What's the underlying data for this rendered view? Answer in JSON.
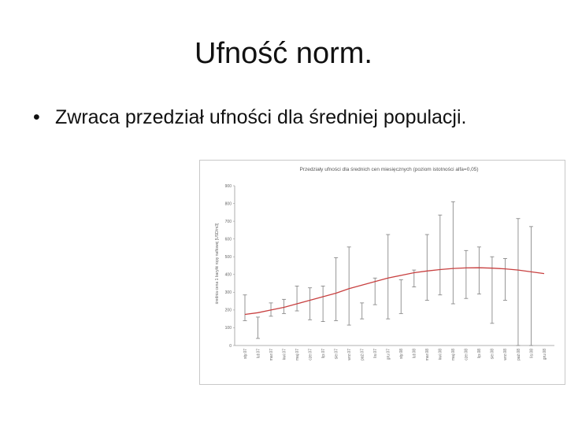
{
  "slide": {
    "title": "Ufność norm.",
    "bullet_marker": "•",
    "bullet_text": "Zwraca przedział ufności dla średniej populacji."
  },
  "chart_data": {
    "type": "line",
    "title": "Przedziały ufności dla średnich cen miesięcznych (poziom istotności alfa=0,05)",
    "ylabel": "średnia cena 1 baryłki ropy naftowej [USD/m3]",
    "xlabel": "",
    "ylim": [
      0,
      900
    ],
    "yticks": [
      0,
      100,
      200,
      300,
      400,
      500,
      600,
      700,
      800,
      900
    ],
    "grid": false,
    "legend": "none",
    "categories": [
      "sty.07",
      "lut.07",
      "mar.07",
      "kwi.07",
      "maj.07",
      "cze.07",
      "lip.07",
      "sie.07",
      "wrz.07",
      "paź.07",
      "lis.07",
      "gru.07",
      "sty.08",
      "lut.08",
      "mar.08",
      "kwi.08",
      "maj.08",
      "cze.08",
      "lip.08",
      "sie.08",
      "wrz.08",
      "paź.08",
      "lis.08",
      "gru.08"
    ],
    "series": [
      {
        "values": [
          175,
          185,
          200,
          215,
          235,
          255,
          275,
          295,
          320,
          340,
          360,
          380,
          395,
          410,
          420,
          428,
          434,
          437,
          438,
          436,
          432,
          425,
          415,
          405
        ],
        "lower": [
          140,
          40,
          165,
          180,
          195,
          145,
          135,
          140,
          115,
          150,
          230,
          150,
          180,
          330,
          255,
          285,
          235,
          265,
          290,
          125,
          255,
          0,
          0,
          0
        ],
        "upper": [
          285,
          160,
          240,
          260,
          335,
          325,
          335,
          495,
          555,
          240,
          380,
          625,
          370,
          425,
          625,
          735,
          810,
          535,
          555,
          500,
          490,
          715,
          670,
          0
        ],
        "color": "#c84040"
      }
    ],
    "errorbar_color": "#8a8a8a",
    "frame_color": "#c8c8c8"
  }
}
